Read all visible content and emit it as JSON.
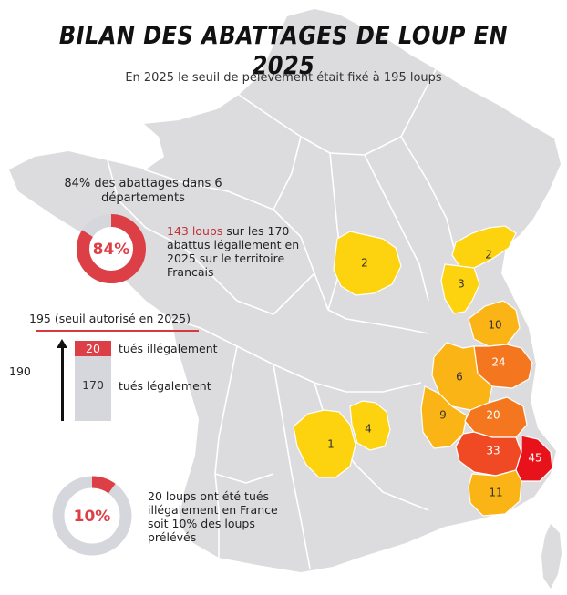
{
  "title": "BILAN DES ABATTAGES DE LOUP EN 2025",
  "subtitle": "En 2025 le seuil de pélèvement était fixé à 195 loups",
  "departements_section": {
    "heading": "84% des abattages dans 6 départements",
    "donut_label": "84%",
    "donut_fraction": 0.84,
    "highlight": "143 loups",
    "text": " sur les 170 abattus légallement en 2025 sur le territoire Francais"
  },
  "quota_section": {
    "threshold_label": "195 (seuil  autorisé en 2025)",
    "total_label": "190",
    "illegal_value": "20",
    "illegal_label": "tués illégalement",
    "legal_value": "170",
    "legal_label": "tués légalement"
  },
  "illegal_section": {
    "donut_label": "10%",
    "donut_fraction": 0.1,
    "text": "20 loups ont été tués illégalement en France soit 10% des loups prélévés"
  },
  "departments": [
    {
      "id": "cote-d-or",
      "value": "2"
    },
    {
      "id": "doubs",
      "value": "2"
    },
    {
      "id": "jura",
      "value": "3"
    },
    {
      "id": "haute-savoie",
      "value": "10"
    },
    {
      "id": "savoie",
      "value": "24"
    },
    {
      "id": "isere",
      "value": "6"
    },
    {
      "id": "drome",
      "value": "9"
    },
    {
      "id": "hautes-alpes",
      "value": "20"
    },
    {
      "id": "alpes-de-haute-provence",
      "value": "33"
    },
    {
      "id": "alpes-maritimes",
      "value": "45"
    },
    {
      "id": "var",
      "value": "11"
    },
    {
      "id": "aveyron",
      "value": "1"
    },
    {
      "id": "lozere",
      "value": "4"
    }
  ],
  "colors": {
    "map_base": "#dcdcde",
    "map_lines": "#ffffff",
    "low": "#fdd20f",
    "mid": "#fbb416",
    "high": "#f4761e",
    "very_high": "#ef4a23",
    "max": "#e8121a",
    "accent_red": "#dc4046",
    "donut_grey": "#d6d7dc"
  }
}
